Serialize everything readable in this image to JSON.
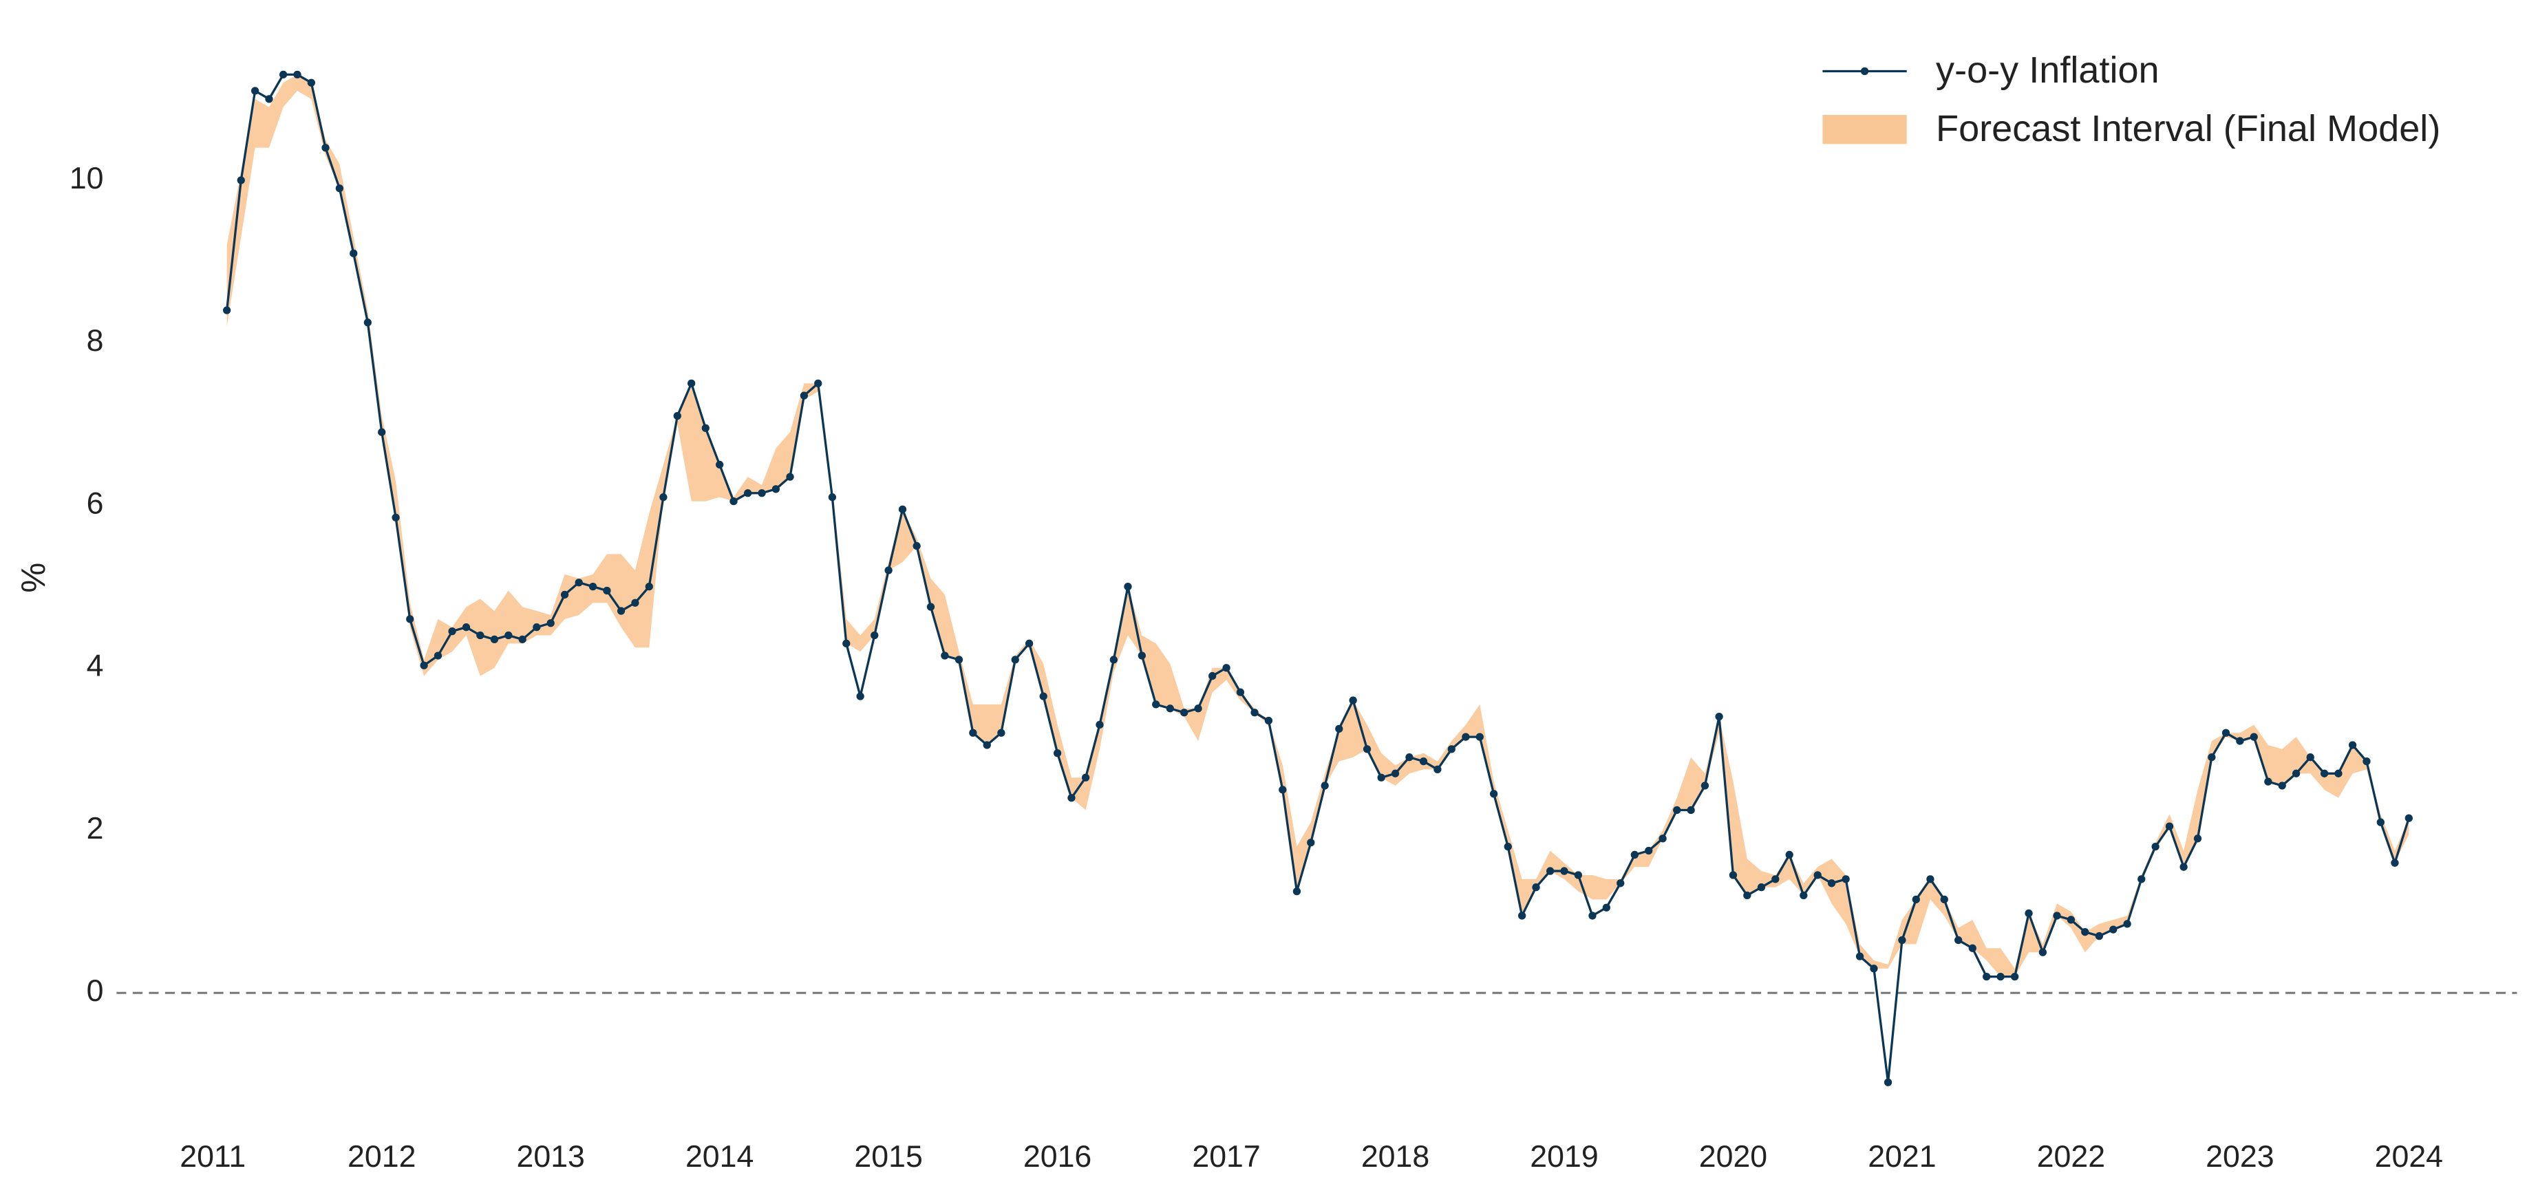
{
  "chart_data": {
    "type": "line",
    "y_label": "%",
    "x": [
      2011.083,
      2011.167,
      2011.25,
      2011.333,
      2011.417,
      2011.5,
      2011.583,
      2011.667,
      2011.75,
      2011.833,
      2011.917,
      2012.0,
      2012.083,
      2012.167,
      2012.25,
      2012.333,
      2012.417,
      2012.5,
      2012.583,
      2012.667,
      2012.75,
      2012.833,
      2012.917,
      2013.0,
      2013.083,
      2013.167,
      2013.25,
      2013.333,
      2013.417,
      2013.5,
      2013.583,
      2013.667,
      2013.75,
      2013.833,
      2013.917,
      2014.0,
      2014.083,
      2014.167,
      2014.25,
      2014.333,
      2014.417,
      2014.5,
      2014.583,
      2014.667,
      2014.75,
      2014.833,
      2014.917,
      2015.0,
      2015.083,
      2015.167,
      2015.25,
      2015.333,
      2015.417,
      2015.5,
      2015.583,
      2015.667,
      2015.75,
      2015.833,
      2015.917,
      2016.0,
      2016.083,
      2016.167,
      2016.25,
      2016.333,
      2016.417,
      2016.5,
      2016.583,
      2016.667,
      2016.75,
      2016.833,
      2016.917,
      2017.0,
      2017.083,
      2017.167,
      2017.25,
      2017.333,
      2017.417,
      2017.5,
      2017.583,
      2017.667,
      2017.75,
      2017.833,
      2017.917,
      2018.0,
      2018.083,
      2018.167,
      2018.25,
      2018.333,
      2018.417,
      2018.5,
      2018.583,
      2018.667,
      2018.75,
      2018.833,
      2018.917,
      2019.0,
      2019.083,
      2019.167,
      2019.25,
      2019.333,
      2019.417,
      2019.5,
      2019.583,
      2019.667,
      2019.75,
      2019.833,
      2019.917,
      2020.0,
      2020.083,
      2020.167,
      2020.25,
      2020.333,
      2020.417,
      2020.5,
      2020.583,
      2020.667,
      2020.75,
      2020.833,
      2020.917,
      2021.0,
      2021.083,
      2021.167,
      2021.25,
      2021.333,
      2021.417,
      2021.5,
      2021.583,
      2021.667,
      2021.75,
      2021.833,
      2021.917,
      2022.0,
      2022.083,
      2022.167,
      2022.25,
      2022.333,
      2022.417,
      2022.5,
      2022.583,
      2022.667,
      2022.75,
      2022.833,
      2022.917,
      2023.0,
      2023.083,
      2023.167,
      2023.25,
      2023.333,
      2023.417,
      2023.5,
      2023.583,
      2023.667,
      2023.75,
      2023.833,
      2023.917,
      2024.0
    ],
    "series": [
      {
        "name": "y-o-y Inflation",
        "color": "#0b3656",
        "values": [
          8.4,
          10.0,
          11.1,
          11.0,
          11.3,
          11.3,
          11.2,
          10.4,
          9.9,
          9.1,
          8.25,
          6.9,
          5.85,
          4.6,
          4.03,
          4.15,
          4.45,
          4.5,
          4.4,
          4.35,
          4.4,
          4.35,
          4.5,
          4.55,
          4.9,
          5.05,
          5.0,
          4.95,
          4.7,
          4.8,
          5.0,
          6.1,
          7.1,
          7.5,
          6.95,
          6.5,
          6.05,
          6.15,
          6.15,
          6.2,
          6.35,
          7.35,
          7.5,
          6.1,
          4.3,
          3.65,
          4.4,
          5.2,
          5.95,
          5.5,
          4.75,
          4.15,
          4.1,
          3.2,
          3.05,
          3.2,
          4.1,
          4.3,
          3.65,
          2.95,
          2.4,
          2.65,
          3.3,
          4.1,
          5.0,
          4.15,
          3.55,
          3.5,
          3.45,
          3.5,
          3.9,
          4.0,
          3.7,
          3.45,
          3.35,
          2.5,
          1.25,
          1.85,
          2.55,
          3.25,
          3.6,
          3.0,
          2.65,
          2.7,
          2.9,
          2.85,
          2.75,
          3.0,
          3.15,
          3.15,
          2.45,
          1.8,
          0.95,
          1.3,
          1.5,
          1.5,
          1.45,
          0.95,
          1.05,
          1.35,
          1.7,
          1.75,
          1.9,
          2.25,
          2.25,
          2.55,
          3.4,
          1.45,
          1.2,
          1.3,
          1.4,
          1.7,
          1.2,
          1.45,
          1.35,
          1.4,
          0.45,
          0.3,
          -1.1,
          0.65,
          1.15,
          1.4,
          1.15,
          0.65,
          0.55,
          0.2,
          0.2,
          0.2,
          0.98,
          0.5,
          0.95,
          0.9,
          0.75,
          0.7,
          0.78,
          0.85,
          1.4,
          1.8,
          2.05,
          1.55,
          1.9,
          2.9,
          3.2,
          3.1,
          3.15,
          2.6,
          2.55,
          2.7,
          2.9,
          2.7,
          2.7,
          3.05,
          2.85,
          2.1,
          1.6,
          2.15
        ]
      },
      {
        "name": "Forecast Interval (Final Model)",
        "color": "#f9c795",
        "lower": [
          8.2,
          9.3,
          10.4,
          10.4,
          10.9,
          11.1,
          11.0,
          10.3,
          9.9,
          9.1,
          8.2,
          6.9,
          5.8,
          4.5,
          3.9,
          4.1,
          4.2,
          4.4,
          3.9,
          4.0,
          4.3,
          4.3,
          4.4,
          4.4,
          4.6,
          4.65,
          4.8,
          4.8,
          4.5,
          4.25,
          4.25,
          6.1,
          7.0,
          6.05,
          6.05,
          6.1,
          6.05,
          6.15,
          6.15,
          6.2,
          6.35,
          7.3,
          7.4,
          6.1,
          4.3,
          4.2,
          4.4,
          5.2,
          5.3,
          5.5,
          4.75,
          4.15,
          4.1,
          3.2,
          3.05,
          3.2,
          4.1,
          4.3,
          3.65,
          2.95,
          2.4,
          2.25,
          3.0,
          3.95,
          4.4,
          4.15,
          3.55,
          3.5,
          3.4,
          3.1,
          3.7,
          3.85,
          3.6,
          3.45,
          3.3,
          2.5,
          1.25,
          1.85,
          2.55,
          2.85,
          2.9,
          3.0,
          2.65,
          2.55,
          2.7,
          2.75,
          2.75,
          3.0,
          3.15,
          3.15,
          2.45,
          1.8,
          0.95,
          1.3,
          1.5,
          1.4,
          1.25,
          1.15,
          1.15,
          1.35,
          1.55,
          1.55,
          1.9,
          2.25,
          2.25,
          2.55,
          3.2,
          1.45,
          1.2,
          1.3,
          1.3,
          1.4,
          1.2,
          1.45,
          1.1,
          0.85,
          0.45,
          0.3,
          0.3,
          0.6,
          0.6,
          1.15,
          0.95,
          0.65,
          0.55,
          0.4,
          0.2,
          0.2,
          0.5,
          0.5,
          0.95,
          0.8,
          0.5,
          0.7,
          0.78,
          0.85,
          1.4,
          1.8,
          2.05,
          1.55,
          1.9,
          2.9,
          3.15,
          3.1,
          3.15,
          2.6,
          2.55,
          2.7,
          2.7,
          2.5,
          2.4,
          2.7,
          2.75,
          2.1,
          1.6,
          1.95
        ],
        "upper": [
          9.2,
          10.1,
          11.0,
          10.9,
          11.2,
          11.3,
          11.2,
          10.5,
          10.2,
          9.3,
          8.4,
          7.1,
          6.3,
          4.8,
          4.1,
          4.6,
          4.5,
          4.75,
          4.85,
          4.7,
          4.95,
          4.75,
          4.7,
          4.65,
          5.15,
          5.1,
          5.15,
          5.4,
          5.4,
          5.2,
          5.9,
          6.5,
          7.1,
          7.45,
          6.95,
          6.5,
          6.1,
          6.35,
          6.25,
          6.7,
          6.9,
          7.5,
          7.5,
          6.2,
          4.6,
          4.4,
          4.6,
          5.3,
          5.95,
          5.6,
          5.1,
          4.9,
          4.2,
          3.55,
          3.55,
          3.55,
          4.15,
          4.35,
          4.05,
          3.3,
          2.65,
          2.65,
          3.3,
          4.1,
          5.0,
          4.4,
          4.3,
          4.05,
          3.5,
          3.5,
          4.0,
          4.0,
          3.7,
          3.5,
          3.35,
          2.8,
          1.8,
          2.1,
          2.7,
          3.25,
          3.6,
          3.3,
          2.95,
          2.8,
          2.9,
          2.95,
          2.85,
          3.1,
          3.3,
          3.55,
          2.6,
          2.0,
          1.4,
          1.4,
          1.75,
          1.6,
          1.45,
          1.45,
          1.4,
          1.4,
          1.7,
          1.75,
          2.0,
          2.4,
          2.9,
          2.7,
          3.4,
          2.6,
          1.65,
          1.5,
          1.45,
          1.7,
          1.35,
          1.55,
          1.65,
          1.45,
          0.6,
          0.4,
          0.35,
          0.9,
          1.15,
          1.4,
          1.15,
          0.8,
          0.9,
          0.55,
          0.55,
          0.3,
          0.98,
          0.6,
          1.1,
          1.0,
          0.75,
          0.85,
          0.9,
          0.95,
          1.45,
          1.85,
          2.2,
          1.75,
          2.5,
          3.1,
          3.2,
          3.2,
          3.3,
          3.05,
          3.0,
          3.15,
          2.9,
          2.7,
          2.7,
          3.05,
          2.85,
          2.2,
          1.75,
          2.15
        ]
      }
    ],
    "xlim": [
      2010.43,
      2024.64
    ],
    "ylim": [
      -1.7,
      11.7
    ],
    "xticks": [
      2011,
      2012,
      2013,
      2014,
      2015,
      2016,
      2017,
      2018,
      2019,
      2020,
      2021,
      2022,
      2023,
      2024
    ],
    "yticks": [
      0,
      2,
      4,
      6,
      8,
      10
    ],
    "hline": 0,
    "grid": false,
    "legend": "upper right"
  }
}
